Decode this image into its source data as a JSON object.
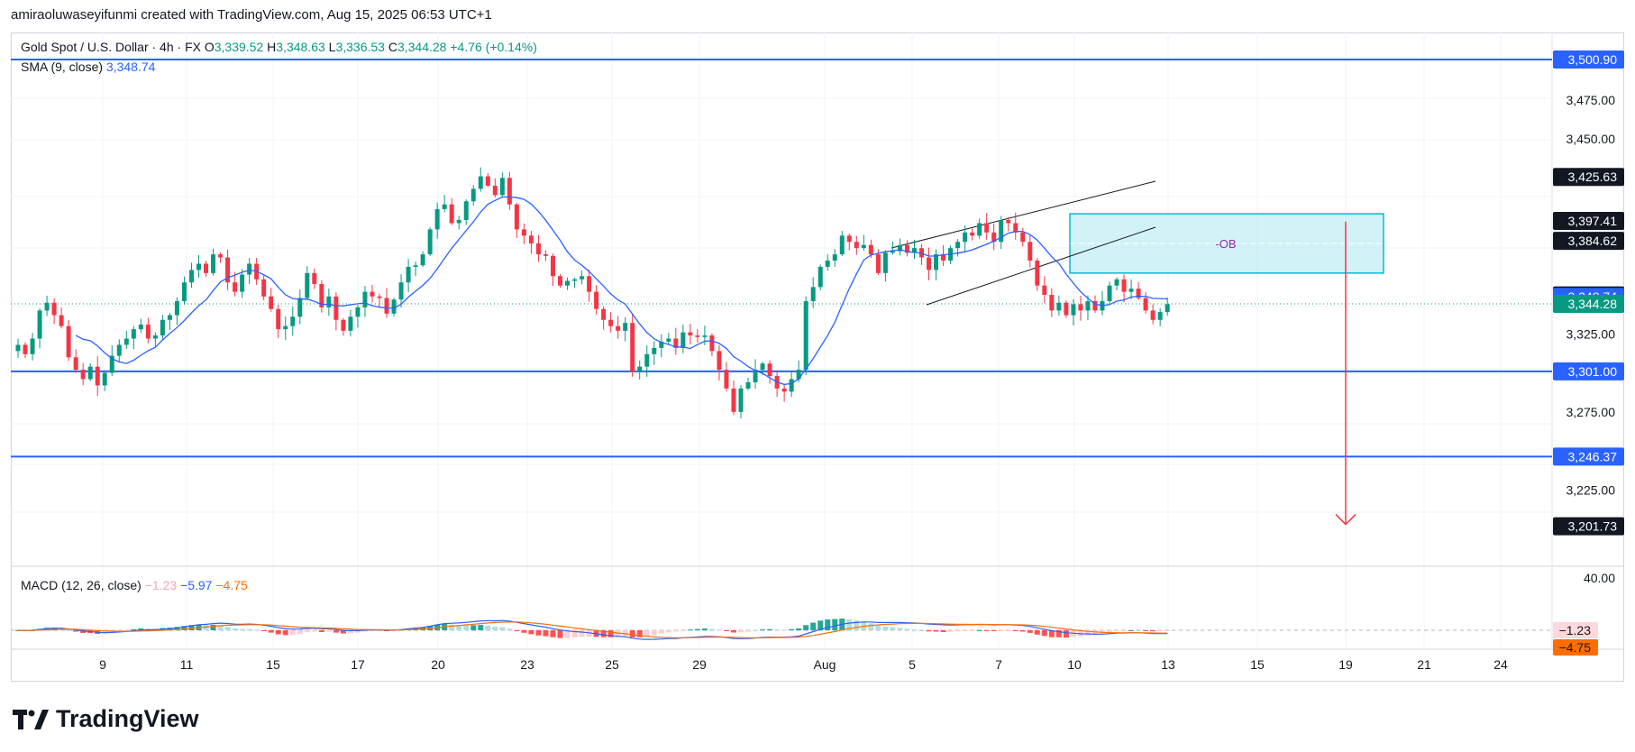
{
  "header": {
    "credit": "amiraoluwaseyifunmi created with TradingView.com, Aug 15, 2025 06:53 UTC+1"
  },
  "legend": {
    "symbol": "Gold Spot / U.S. Dollar · 4h · FX",
    "open_label": "O",
    "open": "3,339.52",
    "high_label": "H",
    "high": "3,348.63",
    "low_label": "L",
    "low": "3,336.53",
    "close_label": "C",
    "close": "3,344.28",
    "change": "+4.76 (+0.14%)",
    "sma_label": "SMA (9, close)",
    "sma_value": "3,348.74",
    "macd_label": "MACD (12, 26, close)",
    "macd_hist": "−1.23",
    "macd_line": "−5.97",
    "macd_signal": "−4.75"
  },
  "colors": {
    "up": "#089981",
    "down": "#f23645",
    "sma": "#2962ff",
    "level": "#2962ff",
    "ob_fill": "#b2ebf2",
    "ob_border": "#00bcd4",
    "arrow": "#f23645",
    "macd_line": "#2962ff",
    "signal_line": "#ff6d00"
  },
  "annotations": {
    "ob_label": "-OB"
  },
  "brand": {
    "name": "TradingView",
    "logo_icon": "tradingview-logo-icon"
  },
  "chart_data": [
    {
      "type": "candlestick",
      "title": "Gold Spot / U.S. Dollar · 4h · FX",
      "y_ticks": [
        "3,475.00",
        "3,450.00",
        "3,325.00",
        "3,275.00",
        "3,225.00"
      ],
      "x_ticks": [
        "9",
        "11",
        "15",
        "17",
        "20",
        "23",
        "25",
        "29",
        "Aug",
        "5",
        "7",
        "10",
        "13",
        "15",
        "19",
        "21",
        "24"
      ],
      "horizontal_levels": [
        3500.9,
        3301.0,
        3246.37
      ],
      "price_labels": [
        {
          "text": "3,500.90",
          "value": 3500.9,
          "bg": "#2962ff",
          "fg": "#ffffff"
        },
        {
          "text": "3,425.63",
          "value": 3425.63,
          "bg": "#131722",
          "fg": "#ffffff"
        },
        {
          "text": "3,397.41",
          "value": 3397.41,
          "bg": "#131722",
          "fg": "#ffffff"
        },
        {
          "text": "3,384.62",
          "value": 3384.62,
          "bg": "#131722",
          "fg": "#ffffff"
        },
        {
          "text": "3,349.68",
          "value": 3349.68,
          "bg": "#131722",
          "fg": "#ffffff"
        },
        {
          "text": "3,348.74",
          "value": 3348.74,
          "bg": "#2962ff",
          "fg": "#ffffff"
        },
        {
          "text": "3,344.28",
          "value": 3344.28,
          "bg": "#089981",
          "fg": "#ffffff"
        },
        {
          "text": "3,301.00",
          "value": 3301.0,
          "bg": "#2962ff",
          "fg": "#ffffff"
        },
        {
          "text": "3,246.37",
          "value": 3246.37,
          "bg": "#2962ff",
          "fg": "#ffffff"
        },
        {
          "text": "3,201.73",
          "value": 3201.73,
          "bg": "#131722",
          "fg": "#ffffff"
        }
      ],
      "order_block": {
        "label": "-OB",
        "top": 3402,
        "bottom": 3364,
        "x_from": "Aug 9",
        "x_to": "Aug 20"
      },
      "channel": {
        "upper": [
          [
            "Aug 4",
            3378
          ],
          [
            "Aug 12",
            3425
          ]
        ],
        "lower": [
          [
            "Aug 5",
            3354
          ],
          [
            "Aug 12",
            3403
          ]
        ]
      },
      "projection_arrow": {
        "from": 3397,
        "to": 3201.73,
        "x": "Aug 19"
      },
      "closes": [
        3318,
        3312,
        3322,
        3340,
        3345,
        3337,
        3330,
        3310,
        3302,
        3296,
        3304,
        3292,
        3300,
        3311,
        3318,
        3322,
        3328,
        3331,
        3322,
        3324,
        3334,
        3337,
        3346,
        3358,
        3366,
        3370,
        3364,
        3376,
        3374,
        3358,
        3352,
        3363,
        3370,
        3360,
        3349,
        3341,
        3328,
        3330,
        3336,
        3348,
        3364,
        3357,
        3342,
        3349,
        3334,
        3327,
        3336,
        3342,
        3352,
        3349,
        3348,
        3338,
        3347,
        3358,
        3368,
        3369,
        3376,
        3392,
        3405,
        3408,
        3396,
        3398,
        3410,
        3418,
        3426,
        3420,
        3414,
        3425,
        3408,
        3392,
        3388,
        3383,
        3376,
        3375,
        3362,
        3356,
        3359,
        3360,
        3362,
        3352,
        3341,
        3334,
        3330,
        3327,
        3332,
        3301,
        3304,
        3312,
        3316,
        3320,
        3322,
        3316,
        3326,
        3324,
        3323,
        3324,
        3314,
        3302,
        3290,
        3275,
        3290,
        3294,
        3302,
        3306,
        3298,
        3290,
        3288,
        3296,
        3302,
        3346,
        3355,
        3368,
        3372,
        3376,
        3388,
        3384,
        3380,
        3382,
        3376,
        3364,
        3377,
        3378,
        3382,
        3377,
        3380,
        3374,
        3366,
        3376,
        3372,
        3380,
        3384,
        3390,
        3388,
        3396,
        3390,
        3384,
        3398,
        3396,
        3390,
        3384,
        3372,
        3356,
        3350,
        3340,
        3345,
        3337,
        3344,
        3340,
        3346,
        3340,
        3346,
        3356,
        3360,
        3352,
        3354,
        3348,
        3340,
        3334,
        3339,
        3344
      ],
      "sma": {
        "name": "SMA (9, close)",
        "last": 3348.74
      }
    },
    {
      "type": "bar+line",
      "title": "MACD (12, 26, close)",
      "y_ticks": [
        "40.00"
      ],
      "last_labels": [
        {
          "text": "−1.23",
          "bg": "#fdd8dc",
          "fg": "#131722"
        },
        {
          "text": "−4.75",
          "bg": "#ff6d00",
          "fg": "#131722"
        }
      ],
      "series": [
        {
          "name": "MACD",
          "last": -5.97
        },
        {
          "name": "Signal",
          "last": -4.75
        },
        {
          "name": "Histogram",
          "last": -1.23
        }
      ]
    }
  ]
}
